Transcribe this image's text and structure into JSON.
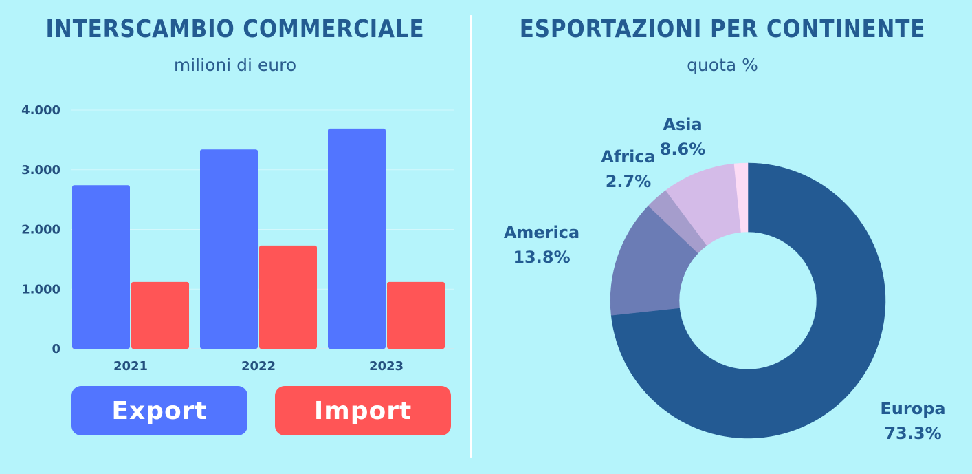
{
  "colors": {
    "background": "#b5f4fb",
    "export": "#5275ff",
    "import": "#ff5556",
    "title": "#235b91"
  },
  "left": {
    "title": "INTERSCAMBIO COMMERCIALE",
    "subtitle": "milioni di euro"
  },
  "right": {
    "title": "ESPORTAZIONI PER CONTINENTE",
    "subtitle": "quota %"
  },
  "legend": {
    "export_label": "Export",
    "import_label": "Import"
  },
  "chart_data": [
    {
      "type": "bar",
      "title": "INTERSCAMBIO COMMERCIALE",
      "subtitle": "milioni di euro",
      "categories": [
        "2021",
        "2022",
        "2023"
      ],
      "series": [
        {
          "name": "Export",
          "color": "#5275ff",
          "values": [
            2740,
            3340,
            3690
          ]
        },
        {
          "name": "Import",
          "color": "#ff5556",
          "values": [
            1120,
            1730,
            1120
          ]
        }
      ],
      "ylim": [
        0,
        4000
      ],
      "yticks": [
        0,
        1000,
        2000,
        3000,
        4000
      ],
      "ytick_labels": [
        "0",
        "1.000",
        "2.000",
        "3.000",
        "4.000"
      ],
      "grid": true,
      "legend_placement": "bottom"
    },
    {
      "type": "pie",
      "style": "donut",
      "title": "ESPORTAZIONI PER CONTINENTE",
      "subtitle": "quota %",
      "slices": [
        {
          "label": "Europa",
          "value": 73.3,
          "display": "73.3%",
          "color": "#235a93"
        },
        {
          "label": "America",
          "value": 13.8,
          "display": "13.8%",
          "color": "#6b7cb5"
        },
        {
          "label": "Africa",
          "value": 2.7,
          "display": "2.7%",
          "color": "#a59dcc"
        },
        {
          "label": "Asia",
          "value": 8.6,
          "display": "8.6%",
          "color": "#d4bbe8"
        },
        {
          "label": "",
          "value": 1.6,
          "display": "",
          "color": "#fcdcf5"
        }
      ]
    }
  ]
}
